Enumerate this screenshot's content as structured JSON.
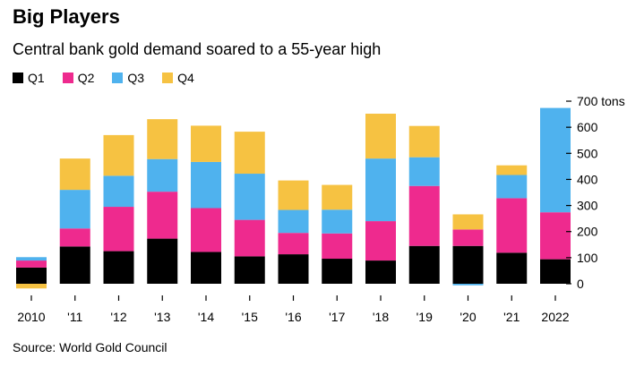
{
  "title": "Big Players",
  "subtitle": "Central bank gold demand soared to a 55-year high",
  "source": "Source: World Gold Council",
  "colors": {
    "Q1": "#000000",
    "Q2": "#ee2a8e",
    "Q3": "#4fb2ee",
    "Q4": "#f6c242"
  },
  "chart_data": {
    "type": "bar",
    "stacked": true,
    "categories": [
      "2010",
      "'11",
      "'12",
      "'13",
      "'14",
      "'15",
      "'16",
      "'17",
      "'18",
      "'19",
      "'20",
      "'21",
      "2022"
    ],
    "series": [
      {
        "name": "Q1",
        "values": [
          62,
          143,
          125,
          173,
          122,
          105,
          113,
          96,
          89,
          145,
          145,
          119,
          94
        ]
      },
      {
        "name": "Q2",
        "values": [
          27,
          69,
          170,
          180,
          168,
          140,
          82,
          97,
          151,
          230,
          63,
          209,
          180
        ]
      },
      {
        "name": "Q3",
        "values": [
          13,
          148,
          119,
          125,
          177,
          177,
          88,
          91,
          240,
          110,
          -6,
          89,
          400
        ]
      },
      {
        "name": "Q4",
        "values": [
          -18,
          120,
          156,
          153,
          139,
          161,
          113,
          95,
          172,
          120,
          58,
          37,
          0
        ]
      }
    ],
    "ylim": [
      -20,
      700
    ],
    "yticks": [
      0,
      100,
      200,
      300,
      400,
      500,
      600,
      700
    ],
    "ytick_labels": [
      "0",
      "100",
      "200",
      "300",
      "400",
      "500",
      "600",
      "700 tons"
    ],
    "legend_position": "top-left",
    "grid": false
  }
}
